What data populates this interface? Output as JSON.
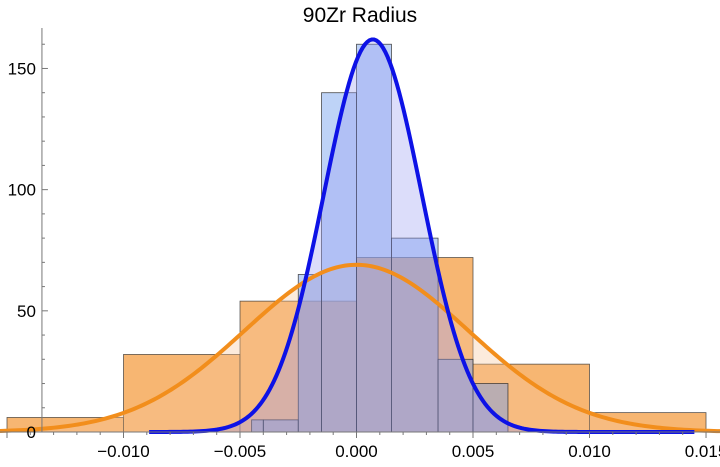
{
  "chart_data": {
    "type": "histogram",
    "title": "90Zr Radius",
    "xlabel": "",
    "ylabel": "",
    "xlim": [
      -0.0153,
      0.0156
    ],
    "ylim": [
      0,
      170
    ],
    "x_ticks": [
      -0.01,
      -0.005,
      0.0,
      0.005,
      0.01,
      0.015
    ],
    "x_tick_labels": [
      "−0.010",
      "−0.005",
      "0.000",
      "0.005",
      "0.010",
      "0.015"
    ],
    "y_ticks": [
      0,
      50,
      100,
      150
    ],
    "y_tick_labels": [
      "0",
      "50",
      "100",
      "150"
    ],
    "grid": false,
    "series": [
      {
        "color": "#f28e1c",
        "bins": [
          {
            "x0": -0.015,
            "x1": -0.01,
            "count": 6
          },
          {
            "x0": -0.01,
            "x1": -0.005,
            "count": 32
          },
          {
            "x0": -0.005,
            "x1": 0.0,
            "count": 54
          },
          {
            "x0": 0.0,
            "x1": 0.005,
            "count": 72
          },
          {
            "x0": 0.005,
            "x1": 0.01,
            "count": 28
          },
          {
            "x0": 0.01,
            "x1": 0.015,
            "count": 8
          }
        ],
        "fit": {
          "type": "normal",
          "mean": 0.0,
          "sd": 0.0048,
          "peak": 69
        }
      },
      {
        "color": "#5a95e6",
        "bins": [
          {
            "x0": -0.0055,
            "x1": -0.0045,
            "count": 0
          },
          {
            "x0": -0.0045,
            "x1": -0.004,
            "count": 5
          },
          {
            "x0": -0.004,
            "x1": -0.0025,
            "count": 5
          },
          {
            "x0": -0.0025,
            "x1": -0.0015,
            "count": 65
          },
          {
            "x0": -0.0015,
            "x1": 0.0,
            "count": 140
          },
          {
            "x0": 0.0,
            "x1": 0.0015,
            "count": 160
          },
          {
            "x0": 0.0015,
            "x1": 0.0035,
            "count": 80
          },
          {
            "x0": 0.0035,
            "x1": 0.005,
            "count": 30
          },
          {
            "x0": 0.005,
            "x1": 0.0065,
            "count": 20
          }
        ],
        "fit": {
          "type": "normal",
          "mean": 0.0007,
          "sd": 0.0021,
          "peak": 162
        }
      }
    ]
  }
}
